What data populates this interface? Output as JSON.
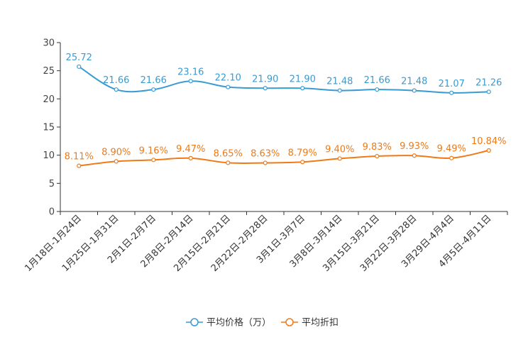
{
  "chart_data": {
    "type": "line",
    "title": "",
    "xlabel": "",
    "ylabel": "",
    "ylim": [
      0,
      30
    ],
    "yticks": [
      0,
      5,
      10,
      15,
      20,
      25,
      30
    ],
    "grid": false,
    "legend_position": "bottom-center",
    "categories": [
      "1月18日-1月24日",
      "1月25日-1月31日",
      "2月1日-2月7日",
      "2月8日-2月14日",
      "2月15日-2月21日",
      "2月22日-2月28日",
      "3月1日-3月7日",
      "3月8日-3月14日",
      "3月15日-3月21日",
      "3月22日-3月28日",
      "3月29日-4月4日",
      "4月5日-4月11日"
    ],
    "series": [
      {
        "name": "平均价格（万）",
        "color": "#3a9bd1",
        "values": [
          25.72,
          21.66,
          21.66,
          23.16,
          22.1,
          21.9,
          21.9,
          21.48,
          21.66,
          21.48,
          21.07,
          21.26
        ],
        "labels": [
          "25.72",
          "21.66",
          "21.66",
          "23.16",
          "22.10",
          "21.90",
          "21.90",
          "21.48",
          "21.66",
          "21.48",
          "21.07",
          "21.26"
        ]
      },
      {
        "name": "平均折扣",
        "color": "#f07a16",
        "values": [
          8.11,
          8.9,
          9.16,
          9.47,
          8.65,
          8.63,
          8.79,
          9.4,
          9.83,
          9.93,
          9.49,
          10.84
        ],
        "labels": [
          "8.11%",
          "8.90%",
          "9.16%",
          "9.47%",
          "8.65%",
          "8.63%",
          "8.79%",
          "9.40%",
          "9.83%",
          "9.93%",
          "9.49%",
          "10.84%"
        ]
      }
    ]
  }
}
